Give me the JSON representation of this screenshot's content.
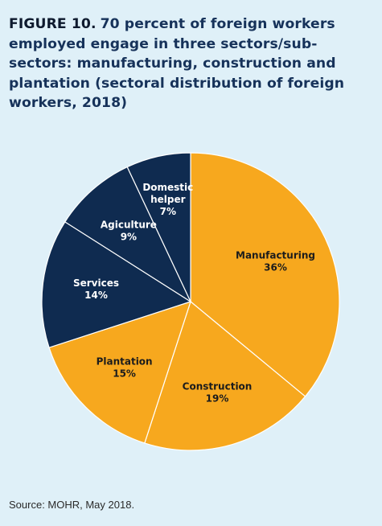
{
  "figure": {
    "label": "FIGURE 10.",
    "title": "70 percent of foreign workers employed engage in three sectors/sub-sectors: manufacturing, construction and plantation (sectoral distribution of foreign workers, 2018)",
    "source": "Source: MOHR, May 2018."
  },
  "colors": {
    "background": "#dff0f8",
    "highlight": "#f7a81e",
    "other": "#0f2b50",
    "title": "#16325a",
    "slice_border": "#ffffff"
  },
  "chart_data": {
    "type": "pie",
    "start_angle_deg": 0,
    "direction": "clockwise",
    "slices": [
      {
        "label": [
          "Manufacturing"
        ],
        "value": 36,
        "value_label": "36%",
        "color": "#f7a81e"
      },
      {
        "label": [
          "Construction"
        ],
        "value": 19,
        "value_label": "19%",
        "color": "#f7a81e"
      },
      {
        "label": [
          "Plantation"
        ],
        "value": 15,
        "value_label": "15%",
        "color": "#f7a81e"
      },
      {
        "label": [
          "Services"
        ],
        "value": 14,
        "value_label": "14%",
        "color": "#0f2b50"
      },
      {
        "label": [
          "Agiculture"
        ],
        "value": 9,
        "value_label": "9%",
        "color": "#0f2b50"
      },
      {
        "label": [
          "Domestic",
          "helper"
        ],
        "value": 7,
        "value_label": "7%",
        "color": "#0f2b50"
      }
    ]
  }
}
